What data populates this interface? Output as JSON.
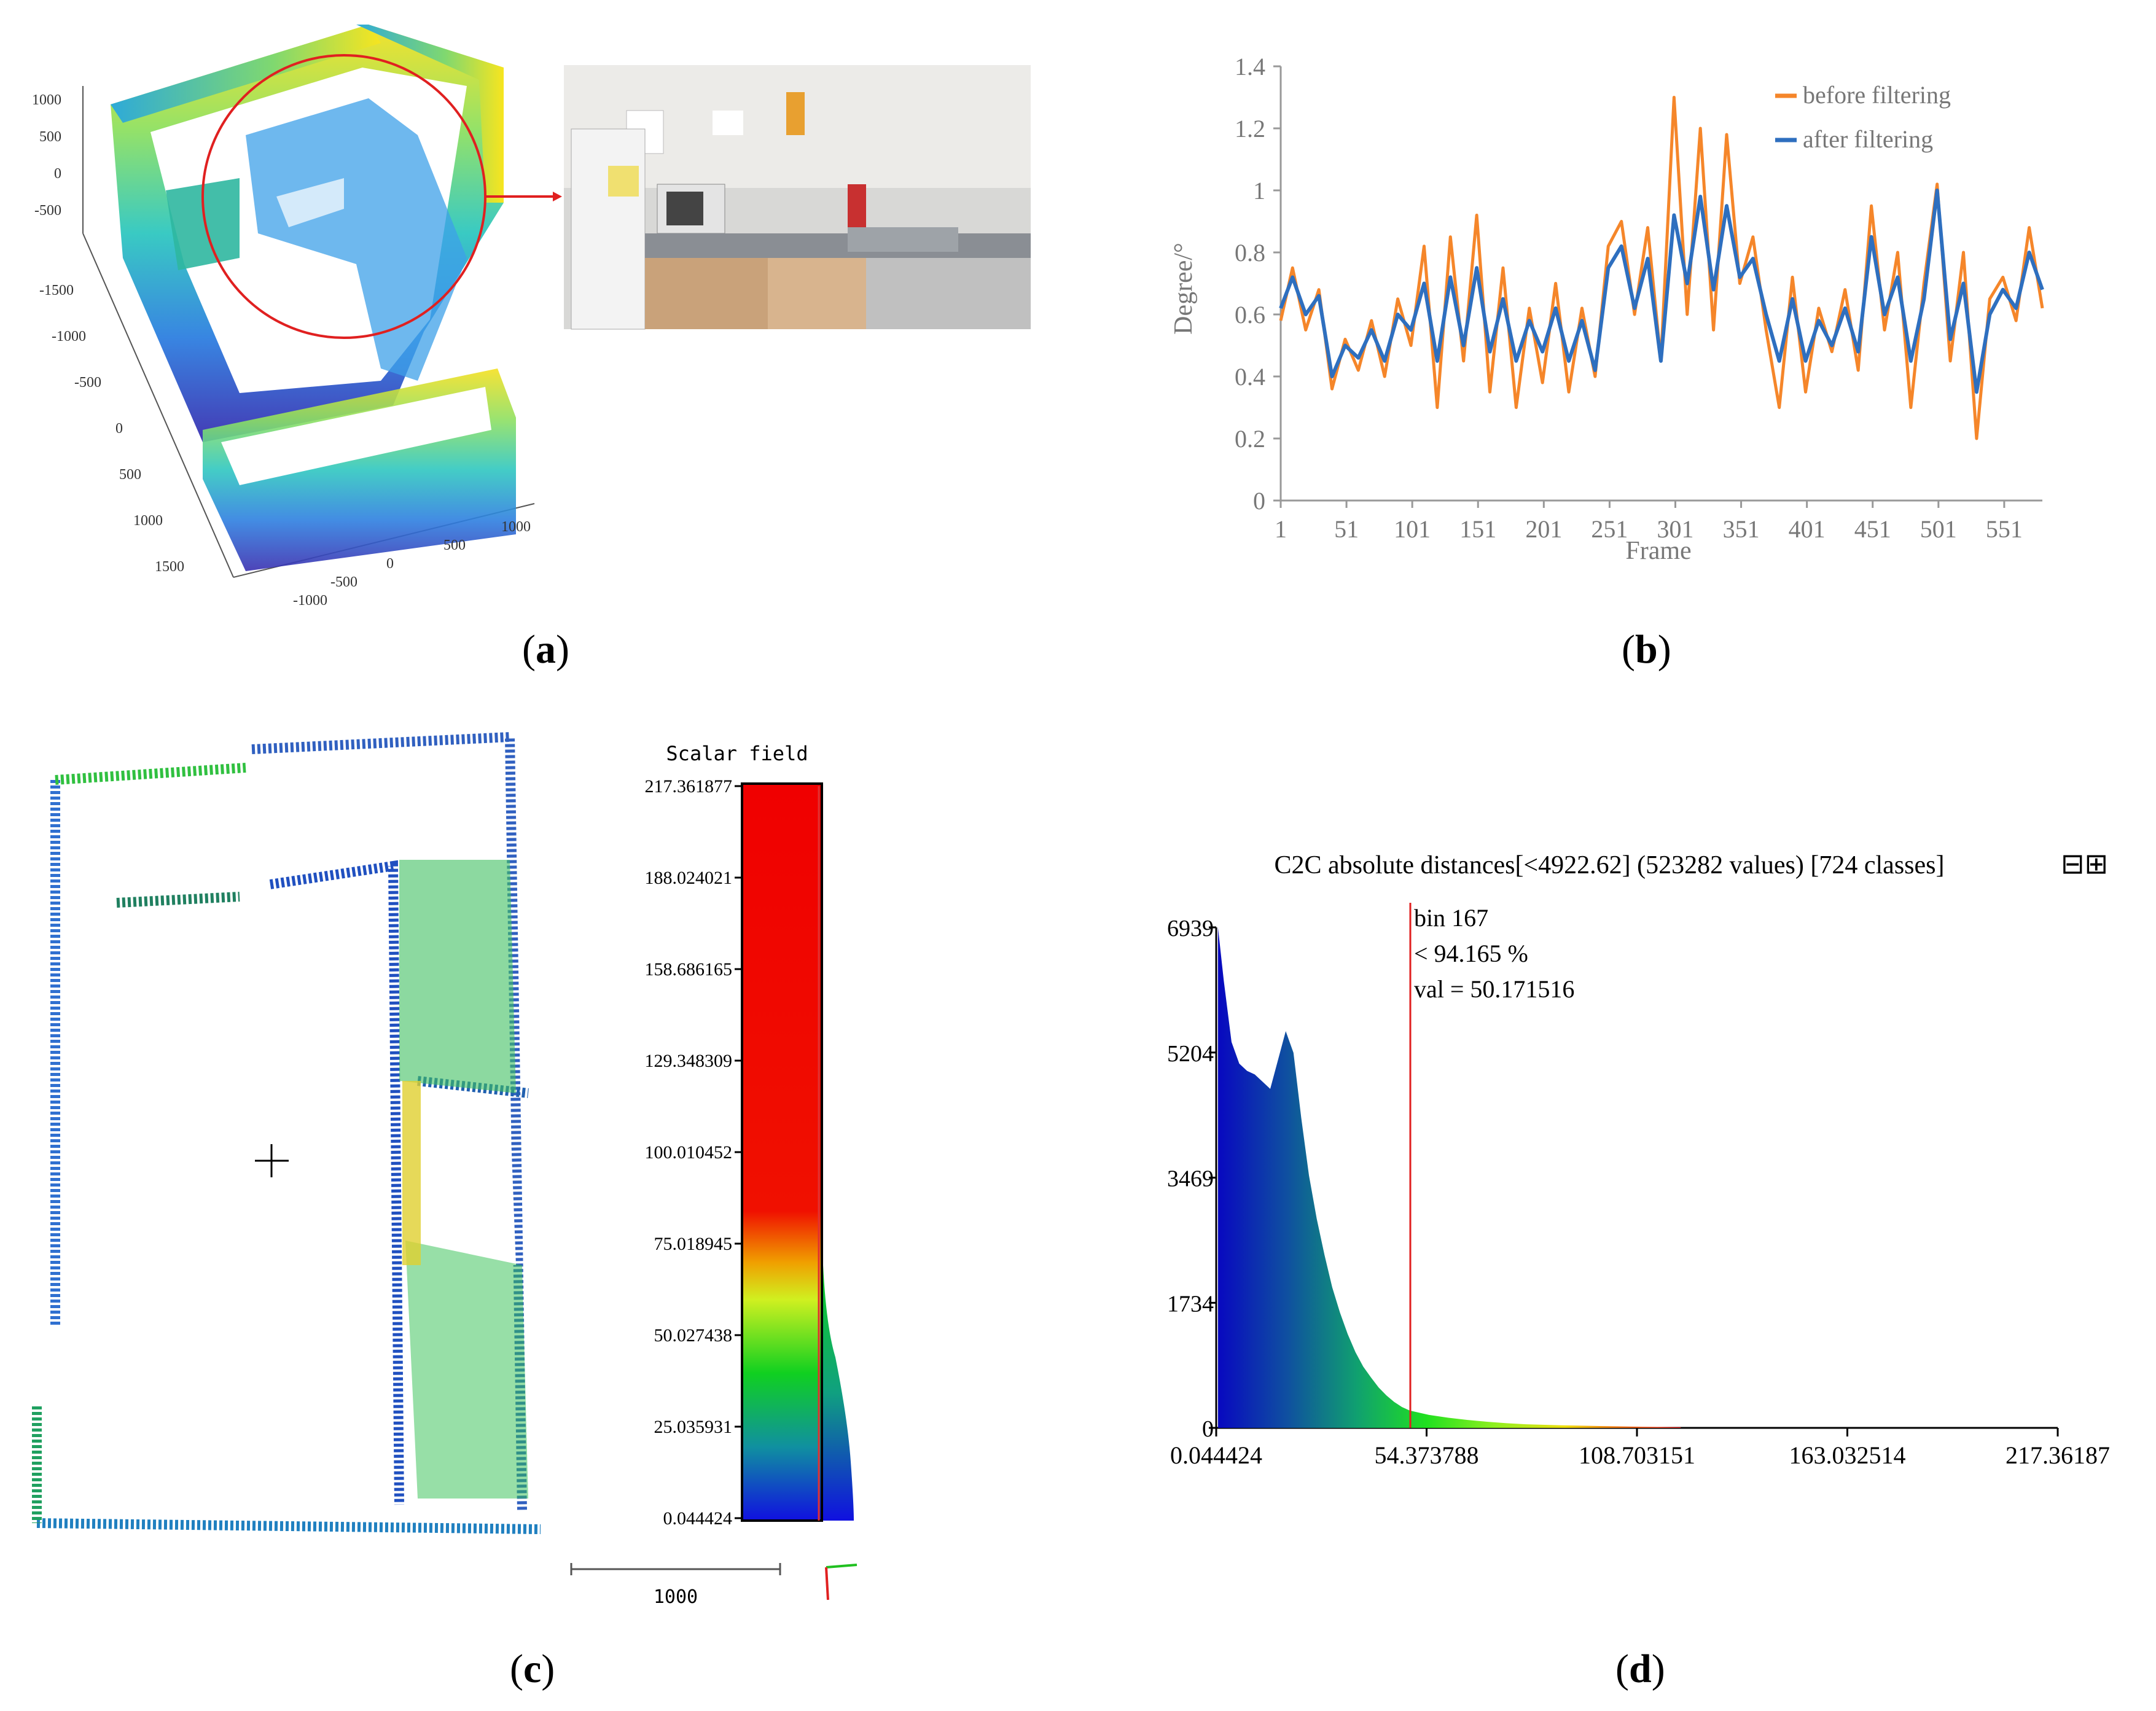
{
  "panel_labels": {
    "a": "a",
    "b": "b",
    "c": "c",
    "d": "d"
  },
  "panel_a": {
    "y_ticks": [
      "1000",
      "500",
      "0",
      "-500"
    ],
    "x_ticks": [
      "-1500",
      "-1000",
      "-500",
      "0",
      "500",
      "1000",
      "1500"
    ],
    "z_ticks": [
      "-1000",
      "-500",
      "0",
      "500",
      "1000"
    ]
  },
  "chart_data": [
    {
      "type": "line",
      "panel": "b",
      "xlabel": "Frame",
      "ylabel": "Degree/°",
      "ylim": [
        0,
        1.4
      ],
      "y_ticks": [
        "0",
        "0.2",
        "0.4",
        "0.6",
        "0.8",
        "1",
        "1.2",
        "1.4"
      ],
      "x_ticks": [
        "1",
        "51",
        "101",
        "151",
        "201",
        "251",
        "301",
        "351",
        "401",
        "451",
        "501",
        "551"
      ],
      "xlim": [
        1,
        580
      ],
      "legend": "top-right",
      "colors": {
        "before": "#f5862a",
        "after": "#2e6fbf"
      },
      "series": [
        {
          "name": "before filtering",
          "x": [
            1,
            10,
            20,
            30,
            40,
            50,
            60,
            70,
            80,
            90,
            100,
            110,
            120,
            130,
            140,
            150,
            160,
            170,
            180,
            190,
            200,
            210,
            220,
            230,
            240,
            250,
            260,
            270,
            280,
            290,
            300,
            310,
            320,
            330,
            340,
            350,
            360,
            370,
            380,
            390,
            400,
            410,
            420,
            430,
            440,
            450,
            460,
            470,
            480,
            490,
            500,
            510,
            520,
            530,
            540,
            550,
            560,
            570,
            580
          ],
          "values": [
            0.58,
            0.75,
            0.55,
            0.68,
            0.36,
            0.52,
            0.42,
            0.58,
            0.4,
            0.65,
            0.5,
            0.82,
            0.3,
            0.85,
            0.45,
            0.92,
            0.35,
            0.75,
            0.3,
            0.62,
            0.38,
            0.7,
            0.35,
            0.62,
            0.4,
            0.82,
            0.9,
            0.6,
            0.88,
            0.45,
            1.3,
            0.6,
            1.2,
            0.55,
            1.18,
            0.7,
            0.85,
            0.55,
            0.3,
            0.72,
            0.35,
            0.62,
            0.48,
            0.68,
            0.42,
            0.95,
            0.55,
            0.8,
            0.3,
            0.7,
            1.02,
            0.45,
            0.8,
            0.2,
            0.65,
            0.72,
            0.58,
            0.88,
            0.62
          ]
        },
        {
          "name": "after filtering",
          "x": [
            1,
            10,
            20,
            30,
            40,
            50,
            60,
            70,
            80,
            90,
            100,
            110,
            120,
            130,
            140,
            150,
            160,
            170,
            180,
            190,
            200,
            210,
            220,
            230,
            240,
            250,
            260,
            270,
            280,
            290,
            300,
            310,
            320,
            330,
            340,
            350,
            360,
            370,
            380,
            390,
            400,
            410,
            420,
            430,
            440,
            450,
            460,
            470,
            480,
            490,
            500,
            510,
            520,
            530,
            540,
            550,
            560,
            570,
            580
          ],
          "values": [
            0.62,
            0.72,
            0.6,
            0.66,
            0.4,
            0.5,
            0.46,
            0.55,
            0.45,
            0.6,
            0.55,
            0.7,
            0.45,
            0.72,
            0.5,
            0.75,
            0.48,
            0.65,
            0.45,
            0.58,
            0.48,
            0.62,
            0.45,
            0.58,
            0.42,
            0.75,
            0.82,
            0.62,
            0.78,
            0.45,
            0.92,
            0.7,
            0.98,
            0.68,
            0.95,
            0.72,
            0.78,
            0.6,
            0.45,
            0.65,
            0.45,
            0.58,
            0.5,
            0.62,
            0.48,
            0.85,
            0.6,
            0.72,
            0.45,
            0.65,
            1.0,
            0.52,
            0.7,
            0.35,
            0.6,
            0.68,
            0.62,
            0.8,
            0.68
          ]
        }
      ]
    },
    {
      "type": "bar",
      "panel": "d",
      "title": "C2C absolute distances[<4922.62] (523282 values)  [724 classes]",
      "title_icons": "⊟⊞",
      "y_ticks": [
        "6939",
        "5204",
        "3469",
        "1734",
        "0"
      ],
      "x_ticks": [
        "0.044424",
        "54.373788",
        "108.703151",
        "163.032514",
        "217.36187"
      ],
      "xlim": [
        0.044424,
        217.36187
      ],
      "ylim": [
        0,
        6939
      ],
      "marker": {
        "bin": "bin 167",
        "percent": "< 94.165 %",
        "val": "val = 50.171516",
        "x": 50.171516
      },
      "x": [
        0.5,
        2,
        4,
        6,
        8,
        10,
        12,
        14,
        16,
        18,
        20,
        22,
        24,
        26,
        28,
        30,
        32,
        34,
        36,
        38,
        40,
        42,
        44,
        46,
        48,
        50,
        55,
        60,
        65,
        70,
        75,
        80,
        90,
        100,
        110,
        120
      ],
      "values": [
        6939,
        6200,
        5350,
        5050,
        4950,
        4900,
        4800,
        4700,
        5100,
        5500,
        5200,
        4300,
        3500,
        2900,
        2400,
        1950,
        1600,
        1300,
        1050,
        850,
        700,
        560,
        450,
        360,
        290,
        240,
        180,
        140,
        110,
        85,
        65,
        50,
        35,
        25,
        15,
        10
      ]
    }
  ],
  "panel_c": {
    "scalar_title": "Scalar field",
    "scale_ticks": [
      "217.361877",
      "188.024021",
      "158.686165",
      "129.348309",
      "100.010452",
      "75.018945",
      "50.027438",
      "25.035931",
      "0.044424"
    ],
    "scale_bar_label": "1000"
  }
}
